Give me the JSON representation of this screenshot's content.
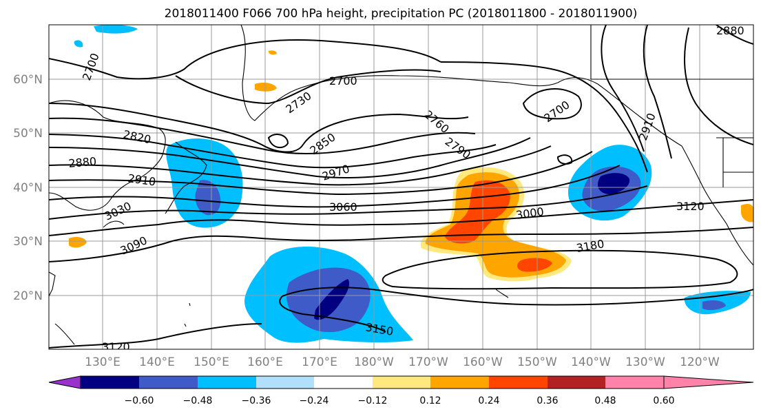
{
  "title": "2018011400 F066 700 hPa height, precipitation PC (2018011800 - 2018011900)",
  "lat_labels": [
    "60°N",
    "50°N",
    "40°N",
    "30°N",
    "20°N"
  ],
  "lon_labels": [
    "130°E",
    "140°E",
    "150°E",
    "160°E",
    "170°E",
    "180°W",
    "170°W",
    "160°W",
    "150°W",
    "140°W",
    "130°W",
    "120°W"
  ],
  "contour_labels": [
    "2700",
    "2700",
    "2730",
    "2760",
    "2700",
    "2820",
    "2850",
    "2790",
    "2910",
    "2880",
    "2970",
    "2910",
    "3030",
    "3060",
    "3000",
    "3120",
    "3090",
    "3180",
    "3150",
    "3120",
    "2880"
  ],
  "colorbar": {
    "ticks": [
      "−0.60",
      "−0.48",
      "−0.36",
      "−0.24",
      "−0.12",
      "0.12",
      "0.24",
      "0.36",
      "0.48",
      "0.60"
    ],
    "colors": [
      "#9932cc",
      "#000080",
      "#3e5bc8",
      "#00bfff",
      "#b0e0fb",
      "#ffffff",
      "#ffe97f",
      "#ffa500",
      "#ff4500",
      "#b22222",
      "#ff82ab"
    ]
  }
}
